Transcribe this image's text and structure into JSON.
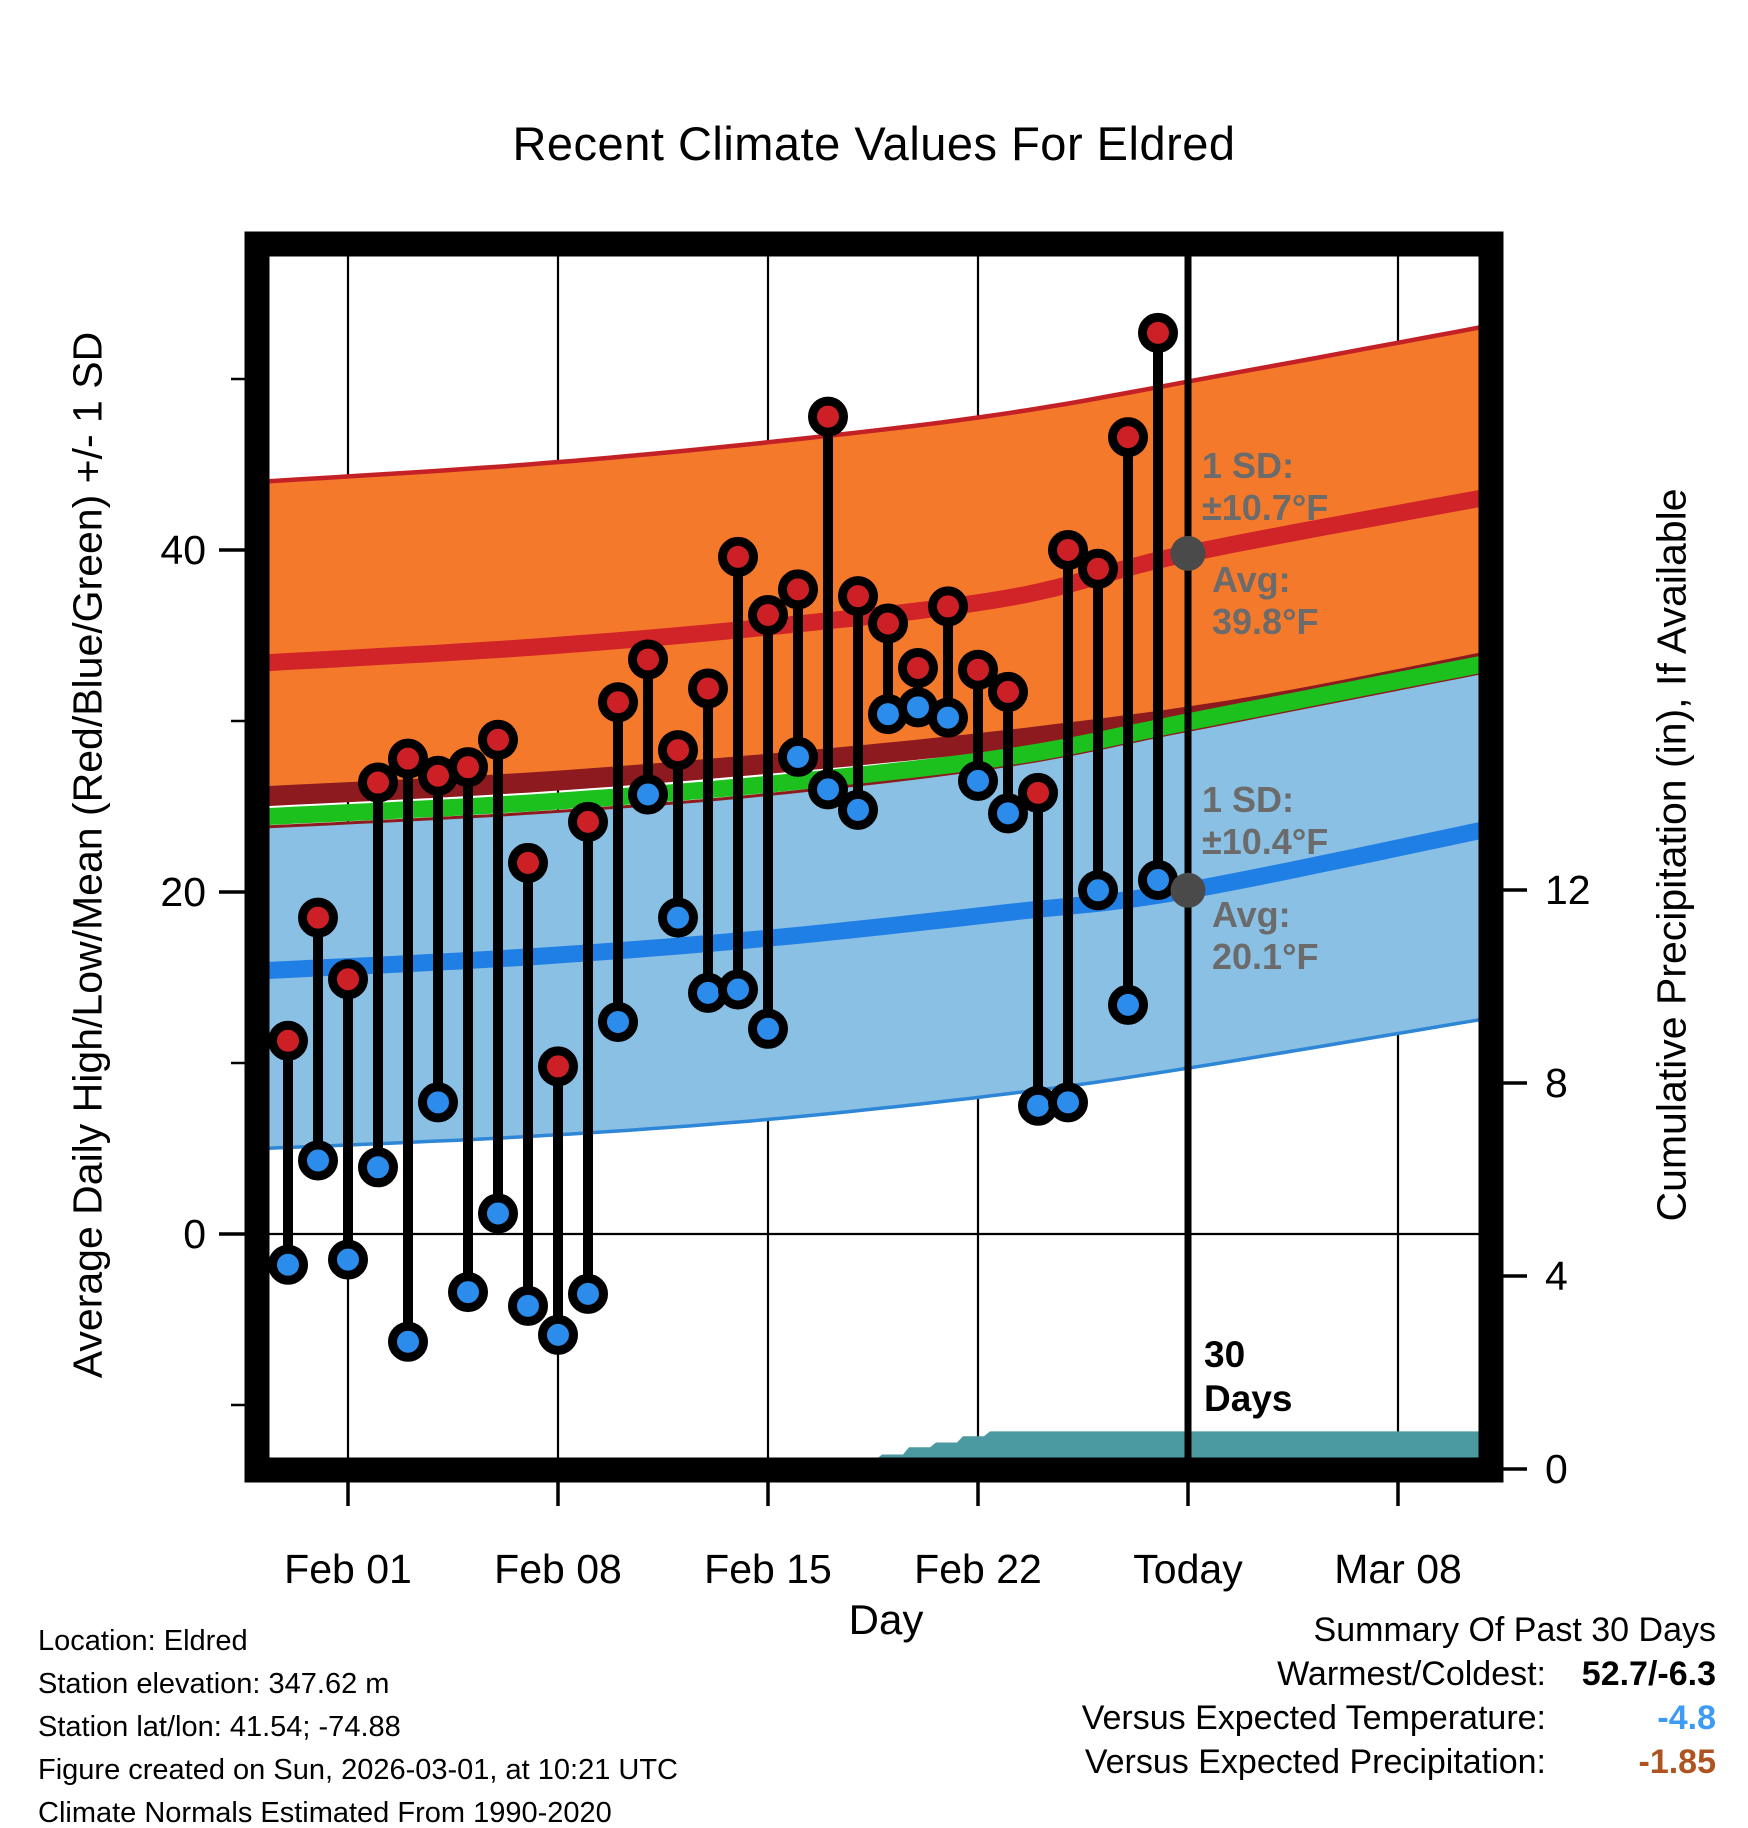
{
  "title": "Recent Climate Values For Eldred",
  "axes": {
    "x_label": "Day",
    "y_left_label": "Average Daily High/Low/Mean (Red/Blue/Green) +/- 1 SD",
    "y_right_label": "Cumulative Precipitation (in), If Available"
  },
  "annotations": {
    "high_sd_line1": "1 SD:",
    "high_sd_line2": "±10.7°F",
    "high_avg_line1": "Avg:",
    "high_avg_line2": "39.8°F",
    "low_sd_line1": "1 SD:",
    "low_sd_line2": "±10.4°F",
    "low_avg_line1": "Avg:",
    "low_avg_line2": "20.1°F",
    "period_line1": "30",
    "period_line2": "Days"
  },
  "chart_data": {
    "type": "line",
    "subtype": "climate-daily-range-with-normals",
    "title": "Recent Climate Values For Eldred",
    "xlabel": "Day",
    "ylabel_left": "Average Daily High/Low/Mean (Red/Blue/Green) +/- 1 SD",
    "ylabel_right": "Cumulative Precipitation (in), If Available",
    "grid": true,
    "x_axis": {
      "ticks": [
        {
          "label": "Feb 01",
          "day": 2
        },
        {
          "label": "Feb 08",
          "day": 9
        },
        {
          "label": "Feb 15",
          "day": 16
        },
        {
          "label": "Feb 22",
          "day": 23
        },
        {
          "label": "Today",
          "day": 30
        },
        {
          "label": "Mar 08",
          "day": 37
        }
      ],
      "today_day": 30,
      "range_days": [
        -0.75,
        40.3
      ]
    },
    "temp_axis": {
      "ticks": [
        0,
        20,
        40
      ],
      "minor_ticks": [
        -10,
        10,
        30,
        50
      ],
      "range_f": [
        -14.6,
        58.6
      ]
    },
    "precip_axis": {
      "ticks": [
        0,
        4,
        8,
        12
      ],
      "range_in": [
        0,
        25.1
      ]
    },
    "daily": {
      "dates": [
        "Jan 30",
        "Jan 31",
        "Feb 01",
        "Feb 02",
        "Feb 03",
        "Feb 04",
        "Feb 05",
        "Feb 06",
        "Feb 07",
        "Feb 08",
        "Feb 09",
        "Feb 10",
        "Feb 11",
        "Feb 12",
        "Feb 13",
        "Feb 14",
        "Feb 15",
        "Feb 16",
        "Feb 17",
        "Feb 18",
        "Feb 19",
        "Feb 20",
        "Feb 21",
        "Feb 22",
        "Feb 23",
        "Feb 24",
        "Feb 25",
        "Feb 26",
        "Feb 27",
        "Feb 28"
      ],
      "high_f": [
        11.3,
        18.5,
        14.9,
        26.4,
        27.8,
        26.8,
        27.3,
        28.9,
        21.7,
        9.8,
        24.1,
        31.1,
        33.6,
        28.3,
        31.9,
        39.6,
        36.2,
        37.7,
        47.8,
        37.3,
        35.7,
        33.1,
        36.7,
        33.0,
        31.7,
        25.8,
        40.0,
        38.9,
        46.6,
        52.7
      ],
      "low_f": [
        -1.8,
        4.3,
        -1.5,
        3.9,
        -6.3,
        7.7,
        -3.4,
        1.2,
        -4.2,
        -5.9,
        -3.5,
        12.4,
        25.7,
        18.5,
        14.1,
        14.3,
        12.0,
        27.9,
        26.0,
        24.8,
        30.4,
        30.8,
        30.2,
        26.5,
        24.6,
        7.5,
        7.7,
        20.1,
        13.4,
        20.7
      ]
    },
    "normals": {
      "high_plus_sd": [
        [
          -0.8,
          44.0
        ],
        [
          8,
          45.0
        ],
        [
          16,
          46.3
        ],
        [
          24,
          48.0
        ],
        [
          32,
          50.5
        ],
        [
          40.3,
          53.2
        ]
      ],
      "avg_high": [
        [
          -0.8,
          33.4
        ],
        [
          8,
          34.3
        ],
        [
          16,
          35.5
        ],
        [
          24,
          37.2
        ],
        [
          30,
          39.8
        ],
        [
          40.3,
          43.2
        ]
      ],
      "high_minus_sd": [
        [
          -0.8,
          25.6
        ],
        [
          8,
          26.4
        ],
        [
          16,
          27.5
        ],
        [
          24,
          28.9
        ],
        [
          32,
          30.8
        ],
        [
          40.3,
          33.6
        ]
      ],
      "mean": [
        [
          -0.8,
          24.4
        ],
        [
          8,
          25.2
        ],
        [
          16,
          26.3
        ],
        [
          24,
          27.9
        ],
        [
          30,
          29.95
        ],
        [
          40.3,
          33.5
        ]
      ],
      "low_plus_sd": [
        [
          -0.8,
          23.8
        ],
        [
          8,
          24.6
        ],
        [
          16,
          25.7
        ],
        [
          24,
          27.4
        ],
        [
          30,
          29.45
        ],
        [
          40.3,
          33.0
        ]
      ],
      "avg_low": [
        [
          -0.8,
          15.4
        ],
        [
          8,
          16.2
        ],
        [
          16,
          17.3
        ],
        [
          24,
          18.8
        ],
        [
          30,
          20.1
        ],
        [
          40.3,
          23.8
        ]
      ],
      "low_minus_sd": [
        [
          -0.8,
          5.0
        ],
        [
          8,
          5.7
        ],
        [
          16,
          6.7
        ],
        [
          24,
          8.2
        ],
        [
          30,
          9.7
        ],
        [
          40.3,
          12.7
        ]
      ]
    },
    "cumulative_precip_in": [
      [
        18.6,
        0
      ],
      [
        19.0,
        0.15
      ],
      [
        19.5,
        0.15
      ],
      [
        19.8,
        0.3
      ],
      [
        20.5,
        0.3
      ],
      [
        20.7,
        0.45
      ],
      [
        21.4,
        0.45
      ],
      [
        21.6,
        0.55
      ],
      [
        22.3,
        0.55
      ],
      [
        22.5,
        0.68
      ],
      [
        23.2,
        0.68
      ],
      [
        23.4,
        0.78
      ],
      [
        40.3,
        0.78
      ]
    ],
    "today_stats": {
      "avg_high_f": 39.8,
      "avg_low_f": 20.1,
      "high_sd_f": 10.7,
      "low_sd_f": 10.4
    }
  },
  "footer": {
    "lines": [
      "Location: Eldred",
      "Station elevation: 347.62 m",
      "Station lat/lon: 41.54; -74.88",
      "Figure created on Sun, 2026-03-01, at 10:21 UTC",
      "Climate Normals Estimated From 1990-2020"
    ]
  },
  "summary": {
    "title": "Summary Of Past 30 Days",
    "warmest_coldest_label": "Warmest/Coldest:",
    "warmest_coldest_value": "52.7/-6.3",
    "vs_temp_label": "Versus Expected Temperature:",
    "vs_temp_value": "-4.8",
    "vs_precip_label": "Versus Expected Precipitation:",
    "vs_precip_value": "-1.85"
  },
  "colors": {
    "high_band": "#F5792B",
    "high_band_edge": "#C42127",
    "high_minus_sd_line": "#8C1A1E",
    "avg_high_line": "#D02428",
    "mean_line": "#1DC11D",
    "low_band": "#8AC0E4",
    "low_band_edge": "#2E86D6",
    "avg_low_line": "#1F7FE4",
    "high_dot": "#CC2026",
    "low_dot": "#2B8CEC",
    "precip_fill": "#4C9AA1",
    "annotation_gray": "#6B6B6B",
    "today_marker": "#4A4A4A",
    "summary_temp_value": "#3E9BF4",
    "summary_precip_value": "#AD5420"
  }
}
